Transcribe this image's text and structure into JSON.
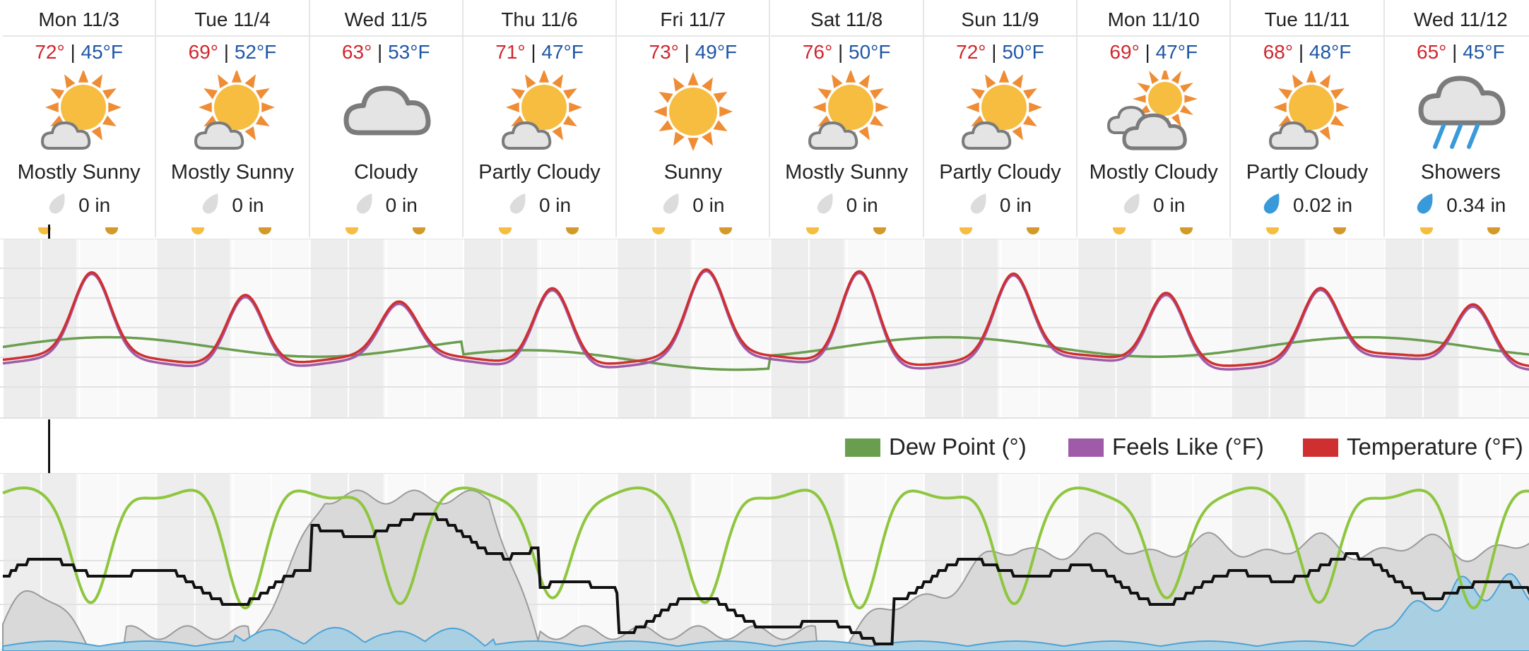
{
  "days": [
    {
      "label": "Mon 11/3",
      "hi": "72°",
      "lo": "45°F",
      "icon": "mostly-sunny-icon",
      "condition": "Mostly Sunny",
      "precip": "0 in",
      "wet": false
    },
    {
      "label": "Tue 11/4",
      "hi": "69°",
      "lo": "52°F",
      "icon": "mostly-sunny-icon",
      "condition": "Mostly Sunny",
      "precip": "0 in",
      "wet": false
    },
    {
      "label": "Wed 11/5",
      "hi": "63°",
      "lo": "53°F",
      "icon": "cloudy-icon",
      "condition": "Cloudy",
      "precip": "0 in",
      "wet": false
    },
    {
      "label": "Thu 11/6",
      "hi": "71°",
      "lo": "47°F",
      "icon": "partly-cloudy-icon",
      "condition": "Partly Cloudy",
      "precip": "0 in",
      "wet": false
    },
    {
      "label": "Fri 11/7",
      "hi": "73°",
      "lo": "49°F",
      "icon": "sunny-icon",
      "condition": "Sunny",
      "precip": "0 in",
      "wet": false
    },
    {
      "label": "Sat 11/8",
      "hi": "76°",
      "lo": "50°F",
      "icon": "mostly-sunny-icon",
      "condition": "Mostly Sunny",
      "precip": "0 in",
      "wet": false
    },
    {
      "label": "Sun 11/9",
      "hi": "72°",
      "lo": "50°F",
      "icon": "partly-cloudy-icon",
      "condition": "Partly Cloudy",
      "precip": "0 in",
      "wet": false
    },
    {
      "label": "Mon 11/10",
      "hi": "69°",
      "lo": "47°F",
      "icon": "mostly-cloudy-icon",
      "condition": "Mostly Cloudy",
      "precip": "0 in",
      "wet": false
    },
    {
      "label": "Tue 11/11",
      "hi": "68°",
      "lo": "48°F",
      "icon": "partly-cloudy-icon",
      "condition": "Partly Cloudy",
      "precip": "0.02 in",
      "wet": true
    },
    {
      "label": "Wed 11/12",
      "hi": "65°",
      "lo": "45°F",
      "icon": "showers-icon",
      "condition": "Showers",
      "precip": "0.34 in",
      "wet": true
    }
  ],
  "separator": "|",
  "legend": [
    {
      "label": "Dew Point (°)",
      "color": "#6a9e4f"
    },
    {
      "label": "Feels Like (°F)",
      "color": "#9f5ba8"
    },
    {
      "label": "Temperature (°F)",
      "color": "#cf2f30"
    }
  ],
  "colors": {
    "temperature": "#cf2f30",
    "feels_like": "#9f5ba8",
    "dew_point": "#6a9e4f",
    "humidity": "#8ec63f",
    "wind": "#111111",
    "cloud_cover": "#d9d9d9",
    "precip_chance": "#a9cfe2",
    "sun": "#f6bd41",
    "sun_rays": "#ee8d35",
    "cloud": "#e4e4e4",
    "rain": "#3a9ad9"
  }
}
